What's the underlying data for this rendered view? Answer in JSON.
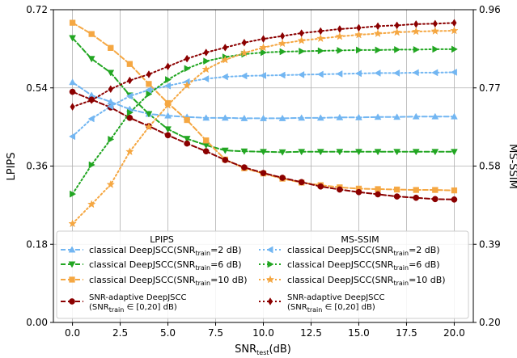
{
  "chart_data": {
    "type": "line",
    "xlabel": {
      "main": "SNR",
      "sub": "test",
      "unit": "(dB)"
    },
    "ylabel_left": "LPIPS",
    "ylabel_right": "MS-SSIM",
    "xlim": [
      -1,
      21
    ],
    "ylim_left": [
      0.0,
      0.72
    ],
    "ylim_right": [
      0.2,
      0.96
    ],
    "x_ticks": [
      "0.0",
      "2.5",
      "5.0",
      "7.5",
      "10.0",
      "12.5",
      "15.0",
      "17.5",
      "20.0"
    ],
    "y_ticks_left": [
      "0.00",
      "0.18",
      "0.36",
      "0.54",
      "0.72"
    ],
    "y_ticks_right": [
      "0.20",
      "0.39",
      "0.58",
      "0.77",
      "0.96"
    ],
    "grid": true,
    "x": [
      0,
      1,
      2,
      3,
      4,
      5,
      6,
      7,
      8,
      9,
      10,
      11,
      12,
      13,
      14,
      15,
      16,
      17,
      18,
      19,
      20
    ],
    "legend": {
      "lpips_header": "LPIPS",
      "msssim_header": "MS-SSIM",
      "entries": {
        "s1": {
          "pre": "classical DeepJSCC(SNR",
          "sub": "train",
          "post": "=2 dB)"
        },
        "s2": {
          "pre": "classical DeepJSCC(SNR",
          "sub": "train",
          "post": "=6 dB)"
        },
        "s3": {
          "pre": "classical DeepJSCC(SNR",
          "sub": "train",
          "post": "=10 dB)"
        },
        "s4a": "SNR-adaptive DeepJSCC",
        "s4b": {
          "pre": "(SNR",
          "sub": "train",
          "post": " ∈ [0,20] dB)"
        }
      }
    },
    "series": [
      {
        "key": "s1",
        "axis": "left",
        "color": "#72b6f2",
        "marker": "triangle-up",
        "linestyle": "dashed",
        "values": [
          0.553,
          0.523,
          0.508,
          0.491,
          0.48,
          0.476,
          0.473,
          0.471,
          0.471,
          0.47,
          0.47,
          0.47,
          0.471,
          0.471,
          0.472,
          0.472,
          0.473,
          0.473,
          0.474,
          0.474,
          0.474
        ]
      },
      {
        "key": "s2",
        "axis": "left",
        "color": "#22a622",
        "marker": "triangle-down",
        "linestyle": "dashed",
        "values": [
          0.655,
          0.607,
          0.575,
          0.523,
          0.48,
          0.445,
          0.423,
          0.408,
          0.396,
          0.394,
          0.393,
          0.392,
          0.393,
          0.393,
          0.393,
          0.393,
          0.393,
          0.393,
          0.393,
          0.393,
          0.393
        ]
      },
      {
        "key": "s3",
        "axis": "left",
        "color": "#f5a742",
        "marker": "square",
        "linestyle": "dashed",
        "values": [
          0.69,
          0.664,
          0.632,
          0.595,
          0.549,
          0.505,
          0.466,
          0.419,
          0.375,
          0.355,
          0.343,
          0.331,
          0.322,
          0.316,
          0.311,
          0.308,
          0.307,
          0.306,
          0.305,
          0.305,
          0.304
        ]
      },
      {
        "key": "s4",
        "axis": "left",
        "color": "#8b0000",
        "marker": "circle",
        "linestyle": "dashed",
        "values": [
          0.531,
          0.513,
          0.495,
          0.471,
          0.452,
          0.431,
          0.412,
          0.394,
          0.374,
          0.357,
          0.344,
          0.333,
          0.323,
          0.313,
          0.306,
          0.3,
          0.295,
          0.29,
          0.287,
          0.284,
          0.283
        ]
      },
      {
        "key": "s1",
        "axis": "right",
        "color": "#72b6f2",
        "marker": "triangle-left",
        "linestyle": "dotted",
        "values": [
          0.652,
          0.695,
          0.725,
          0.75,
          0.765,
          0.775,
          0.785,
          0.792,
          0.797,
          0.799,
          0.8,
          0.801,
          0.802,
          0.803,
          0.804,
          0.805,
          0.806,
          0.806,
          0.807,
          0.807,
          0.808
        ]
      },
      {
        "key": "s2",
        "axis": "right",
        "color": "#22a622",
        "marker": "triangle-right",
        "linestyle": "dotted",
        "values": [
          0.512,
          0.583,
          0.645,
          0.71,
          0.755,
          0.79,
          0.817,
          0.835,
          0.845,
          0.852,
          0.856,
          0.858,
          0.859,
          0.86,
          0.861,
          0.862,
          0.862,
          0.863,
          0.863,
          0.864,
          0.864
        ]
      },
      {
        "key": "s3",
        "axis": "right",
        "color": "#f5a742",
        "marker": "star",
        "linestyle": "dotted",
        "values": [
          0.44,
          0.487,
          0.535,
          0.615,
          0.675,
          0.728,
          0.776,
          0.815,
          0.838,
          0.855,
          0.868,
          0.878,
          0.885,
          0.89,
          0.895,
          0.899,
          0.902,
          0.905,
          0.907,
          0.908,
          0.909
        ]
      },
      {
        "key": "s4",
        "axis": "right",
        "color": "#8b0000",
        "marker": "diamond",
        "linestyle": "dotted",
        "values": [
          0.724,
          0.74,
          0.767,
          0.788,
          0.803,
          0.822,
          0.841,
          0.856,
          0.868,
          0.88,
          0.889,
          0.896,
          0.903,
          0.908,
          0.913,
          0.916,
          0.92,
          0.922,
          0.925,
          0.926,
          0.928
        ]
      }
    ]
  }
}
